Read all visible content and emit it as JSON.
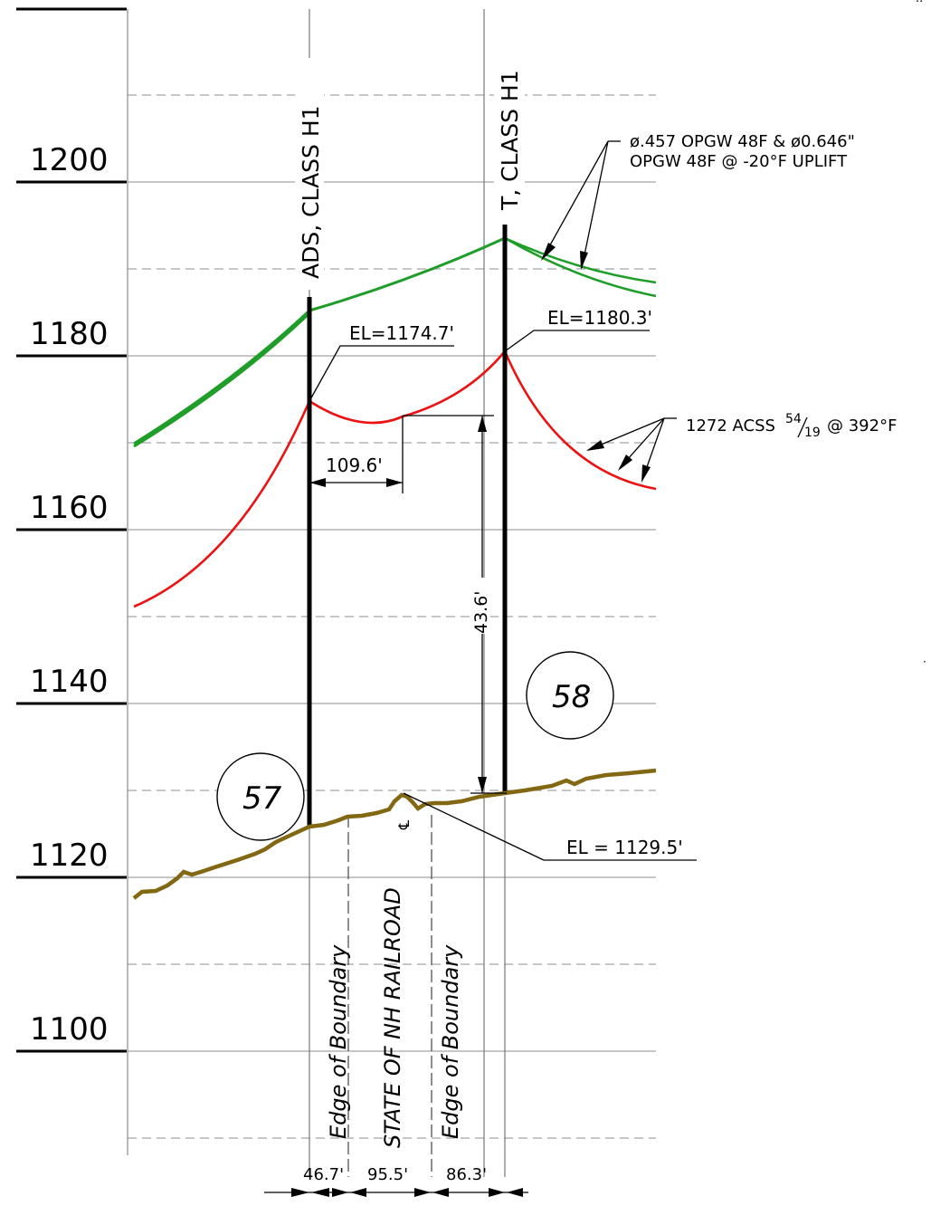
{
  "elevation_labels": [
    "1200",
    "1180",
    "1160",
    "1140",
    "1120",
    "1100"
  ],
  "structures": {
    "left_label": "ADS, CLASS H1",
    "right_label": "T, CLASS H1",
    "left_number": "57",
    "right_number": "58"
  },
  "callouts": {
    "opgw_line1": "ø.457 OPGW 48F & ø0.646\"",
    "opgw_line2": "OPGW 48F @ -20°F UPLIFT",
    "acss_text": "1272 ACSS",
    "acss_frac_top": "54",
    "acss_frac_bot": "19",
    "acss_temp": "@ 392°F",
    "el_left": "EL=1174.7'",
    "el_right": "EL=1180.3'",
    "el_ground": "EL = 1129.5'",
    "low_point_dist": "109.6'",
    "clearance": "43.6'",
    "centerline": "℄"
  },
  "boundaries": {
    "edge_left": "Edge of Boundary",
    "railroad": "STATE OF NH RAILROAD",
    "edge_right": "Edge of Boundary"
  },
  "bottom_dimensions": [
    "46.7'",
    "95.5'",
    "86.3'"
  ],
  "colors": {
    "shield_wire": "#1e9e28",
    "conductor": "#ee1111",
    "ground": "#826812",
    "structure": "#000000"
  }
}
